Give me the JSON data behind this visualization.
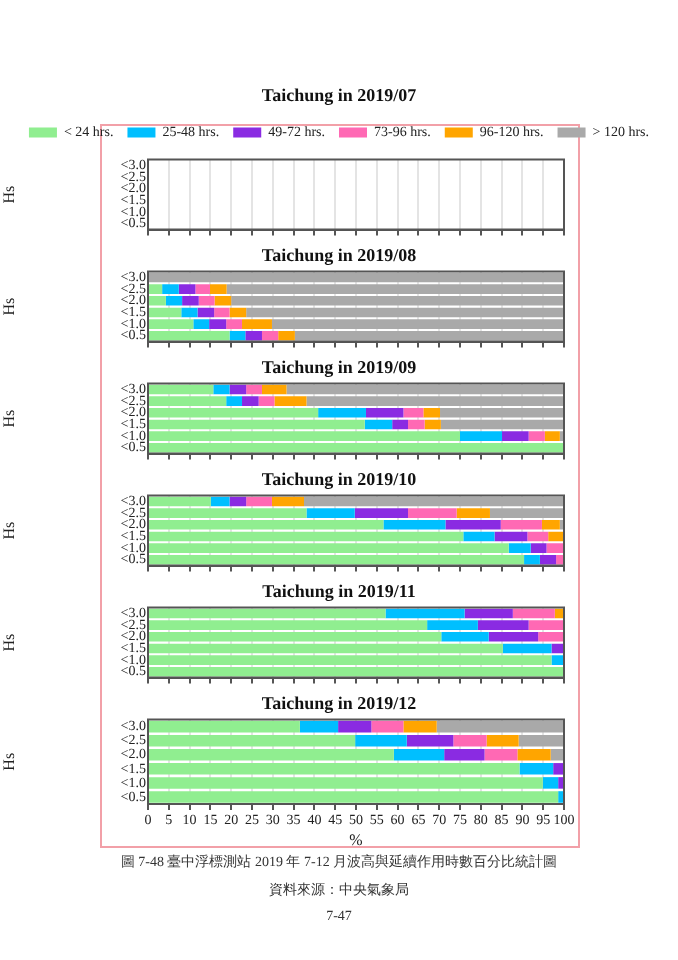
{
  "chart_data": [
    {
      "type": "bar",
      "orientation": "horizontal",
      "stacked": true,
      "title": "Taichung in 2019/07",
      "ylabel": "Hs",
      "categories": [
        "<3.0",
        "<2.5",
        "<2.0",
        "<1.5",
        "<1.0",
        "<0.5"
      ],
      "xlim": [
        0,
        100
      ],
      "xticks": [
        0,
        5,
        10,
        15,
        20,
        25,
        30,
        35,
        40,
        45,
        50,
        55,
        60,
        65,
        70,
        75,
        80,
        85,
        90,
        95,
        100
      ],
      "grid": "x",
      "tick_labels": "y",
      "legend": "top",
      "series": [
        {
          "name": "< 24 hrs.",
          "color": "#90ee90",
          "values": [
            null,
            null,
            null,
            null,
            null,
            null
          ]
        },
        {
          "name": "25-48 hrs.",
          "color": "#00bfff",
          "values": [
            null,
            null,
            null,
            null,
            null,
            null
          ]
        },
        {
          "name": "49-72 hrs.",
          "color": "#8a2be2",
          "values": [
            null,
            null,
            null,
            null,
            null,
            null
          ]
        },
        {
          "name": "73-96 hrs.",
          "color": "#ff69b4",
          "values": [
            null,
            null,
            null,
            null,
            null,
            null
          ]
        },
        {
          "name": "96-120 hrs.",
          "color": "#ffa500",
          "values": [
            null,
            null,
            null,
            null,
            null,
            null
          ]
        },
        {
          "name": "> 120 hrs.",
          "color": "#a9a9a9",
          "values": [
            null,
            null,
            null,
            null,
            null,
            null
          ]
        }
      ]
    },
    {
      "type": "bar",
      "orientation": "horizontal",
      "stacked": true,
      "title": "Taichung in 2019/08",
      "ylabel": "Hs",
      "categories": [
        "<3.0",
        "<2.5",
        "<2.0",
        "<1.5",
        "<1.0",
        "<0.5"
      ],
      "xlim": [
        0,
        100
      ],
      "xticks": [
        0,
        5,
        10,
        15,
        20,
        25,
        30,
        35,
        40,
        45,
        50,
        55,
        60,
        65,
        70,
        75,
        80,
        85,
        90,
        95,
        100
      ],
      "grid": "x",
      "tick_labels": "y",
      "series": [
        {
          "color": "#90ee90",
          "values": [
            0,
            3.4,
            4.3,
            8,
            10.9,
            19.6
          ]
        },
        {
          "color": "#00bfff",
          "values": [
            0,
            4,
            3.9,
            3.9,
            3.8,
            3.8
          ]
        },
        {
          "color": "#8a2be2",
          "values": [
            0,
            4,
            4,
            4,
            4.1,
            4
          ]
        },
        {
          "color": "#ff69b4",
          "values": [
            0,
            3.5,
            3.8,
            3.7,
            3.8,
            3.9
          ]
        },
        {
          "color": "#ffa500",
          "values": [
            0,
            4,
            4,
            4,
            7.2,
            4
          ]
        },
        {
          "color": "#a9a9a9",
          "values": [
            100,
            81.1,
            80,
            76.4,
            70.2,
            64.7
          ]
        }
      ]
    },
    {
      "type": "bar",
      "orientation": "horizontal",
      "stacked": true,
      "title": "Taichung in 2019/09",
      "ylabel": "Hs",
      "categories": [
        "<3.0",
        "<2.5",
        "<2.0",
        "<1.5",
        "<1.0",
        "<0.5"
      ],
      "xlim": [
        0,
        100
      ],
      "xticks": [
        0,
        5,
        10,
        15,
        20,
        25,
        30,
        35,
        40,
        45,
        50,
        55,
        60,
        65,
        70,
        75,
        80,
        85,
        90,
        95,
        100
      ],
      "grid": "x",
      "tick_labels": "y",
      "series": [
        {
          "color": "#90ee90",
          "values": [
            15.7,
            18.8,
            40.9,
            52.1,
            75,
            100
          ]
        },
        {
          "color": "#00bfff",
          "values": [
            3.9,
            3.8,
            11.5,
            6.6,
            10.1,
            0
          ]
        },
        {
          "color": "#8a2be2",
          "values": [
            4,
            4,
            9,
            3.8,
            6.4,
            0
          ]
        },
        {
          "color": "#ff69b4",
          "values": [
            3.8,
            3.8,
            4.8,
            4,
            3.9,
            0
          ]
        },
        {
          "color": "#ffa500",
          "values": [
            5.9,
            7.7,
            4,
            3.9,
            3.6,
            0
          ]
        },
        {
          "color": "#a9a9a9",
          "values": [
            66.7,
            61.9,
            29.8,
            29.6,
            1,
            0
          ]
        }
      ]
    },
    {
      "type": "bar",
      "orientation": "horizontal",
      "stacked": true,
      "title": "Taichung in 2019/10",
      "ylabel": "Hs",
      "categories": [
        "<3.0",
        "<2.5",
        "<2.0",
        "<1.5",
        "<1.0",
        "<0.5"
      ],
      "xlim": [
        0,
        100
      ],
      "xticks": [
        0,
        5,
        10,
        15,
        20,
        25,
        30,
        35,
        40,
        45,
        50,
        55,
        60,
        65,
        70,
        75,
        80,
        85,
        90,
        95,
        100
      ],
      "grid": "x",
      "tick_labels": "y",
      "series": [
        {
          "color": "#90ee90",
          "values": [
            15.1,
            38.1,
            56.6,
            75.8,
            86.7,
            90.4
          ]
        },
        {
          "color": "#00bfff",
          "values": [
            4.5,
            11.6,
            14.9,
            7.5,
            5.3,
            3.8
          ]
        },
        {
          "color": "#8a2be2",
          "values": [
            4,
            12.8,
            13.3,
            7.9,
            3.8,
            3.9
          ]
        },
        {
          "color": "#ff69b4",
          "values": [
            6.2,
            11.7,
            9.9,
            5,
            4.2,
            1.9
          ]
        },
        {
          "color": "#ffa500",
          "values": [
            7.7,
            8,
            4.3,
            3.8,
            0,
            0
          ]
        },
        {
          "color": "#a9a9a9",
          "values": [
            62.5,
            17.8,
            1,
            0,
            0,
            0
          ]
        }
      ]
    },
    {
      "type": "bar",
      "orientation": "horizontal",
      "stacked": true,
      "title": "Taichung in 2019/11",
      "ylabel": "Hs",
      "categories": [
        "<3.0",
        "<2.5",
        "<2.0",
        "<1.5",
        "<1.0",
        "<0.5"
      ],
      "xlim": [
        0,
        100
      ],
      "xticks": [
        0,
        5,
        10,
        15,
        20,
        25,
        30,
        35,
        40,
        45,
        50,
        55,
        60,
        65,
        70,
        75,
        80,
        85,
        90,
        95,
        100
      ],
      "grid": "x",
      "tick_labels": "y",
      "series": [
        {
          "color": "#90ee90",
          "values": [
            57.1,
            67.1,
            70.5,
            85.3,
            97,
            100
          ]
        },
        {
          "color": "#00bfff",
          "values": [
            19,
            12.2,
            11.4,
            11.7,
            3,
            0
          ]
        },
        {
          "color": "#8a2be2",
          "values": [
            11.6,
            12.2,
            11.9,
            3,
            0,
            0
          ]
        },
        {
          "color": "#ff69b4",
          "values": [
            10.1,
            8.5,
            6.2,
            0,
            0,
            0
          ]
        },
        {
          "color": "#ffa500",
          "values": [
            2.2,
            0,
            0,
            0,
            0,
            0
          ]
        },
        {
          "color": "#a9a9a9",
          "values": [
            0,
            0,
            0,
            0,
            0,
            0
          ]
        }
      ]
    },
    {
      "type": "bar",
      "orientation": "horizontal",
      "stacked": true,
      "title": "Taichung in 2019/12",
      "ylabel": "Hs",
      "xlabel": "%",
      "categories": [
        "<3.0",
        "<2.5",
        "<2.0",
        "<1.5",
        "<1.0",
        "<0.5"
      ],
      "xlim": [
        0,
        100
      ],
      "xticks": [
        0,
        5,
        10,
        15,
        20,
        25,
        30,
        35,
        40,
        45,
        50,
        55,
        60,
        65,
        70,
        75,
        80,
        85,
        90,
        95,
        100
      ],
      "grid": "x",
      "annotations": [
        "圖 7-48 臺中浮標測站 2019 年 7-12 月波高與延續作用時數百分比統計圖",
        "資料來源：中央氣象局",
        "7-47"
      ],
      "series": [
        {
          "color": "#90ee90",
          "values": [
            36.5,
            49.8,
            59.1,
            89.3,
            94.9,
            98.6
          ]
        },
        {
          "color": "#00bfff",
          "values": [
            9.2,
            12.4,
            12.1,
            8.1,
            3.7,
            1.4
          ]
        },
        {
          "color": "#8a2be2",
          "values": [
            8,
            11.2,
            9.7,
            2.6,
            1.4,
            0
          ]
        },
        {
          "color": "#ff69b4",
          "values": [
            7.7,
            8,
            7.9,
            0,
            0,
            0
          ]
        },
        {
          "color": "#ffa500",
          "values": [
            8,
            7.7,
            8,
            0,
            0,
            0
          ]
        },
        {
          "color": "#a9a9a9",
          "values": [
            30.6,
            10.9,
            3.2,
            0,
            0,
            0
          ]
        }
      ]
    }
  ]
}
